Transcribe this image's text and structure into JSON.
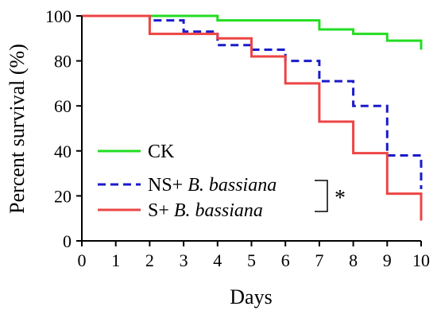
{
  "chart_data": {
    "type": "line",
    "step": true,
    "xlabel": "Days",
    "ylabel": "Percent survival (%)",
    "xlim": [
      0,
      10
    ],
    "ylim": [
      0,
      100
    ],
    "xticks": [
      0,
      1,
      2,
      3,
      4,
      5,
      6,
      7,
      8,
      9,
      10
    ],
    "yticks": [
      0,
      20,
      40,
      60,
      80,
      100
    ],
    "grid": false,
    "legend_position": "bottom-left",
    "series": [
      {
        "name": "CK",
        "name_prefix": "CK",
        "name_italic": "",
        "color": "#22dd22",
        "dash": "solid",
        "x": [
          0,
          2,
          4,
          5,
          7,
          8,
          9,
          10
        ],
        "y": [
          100,
          100,
          98,
          98,
          94,
          92,
          89,
          85
        ]
      },
      {
        "name": "NS+ B. bassiana",
        "name_prefix": "NS+ ",
        "name_italic": "B. bassiana",
        "color": "#1a1acc",
        "dash": "dashed",
        "x": [
          0,
          2,
          3,
          4,
          5,
          6,
          7,
          8,
          9,
          10
        ],
        "y": [
          100,
          98,
          93,
          87,
          85,
          80,
          71,
          60,
          38,
          23
        ]
      },
      {
        "name": "S+ B. bassiana",
        "name_prefix": "S+ ",
        "name_italic": "B. bassiana",
        "color": "#ee4444",
        "dash": "solid",
        "x": [
          0,
          2,
          4,
          5,
          6,
          7,
          8,
          9,
          10
        ],
        "y": [
          100,
          92,
          90,
          82,
          70,
          53,
          39,
          21,
          9
        ]
      }
    ],
    "annotation": "*"
  }
}
